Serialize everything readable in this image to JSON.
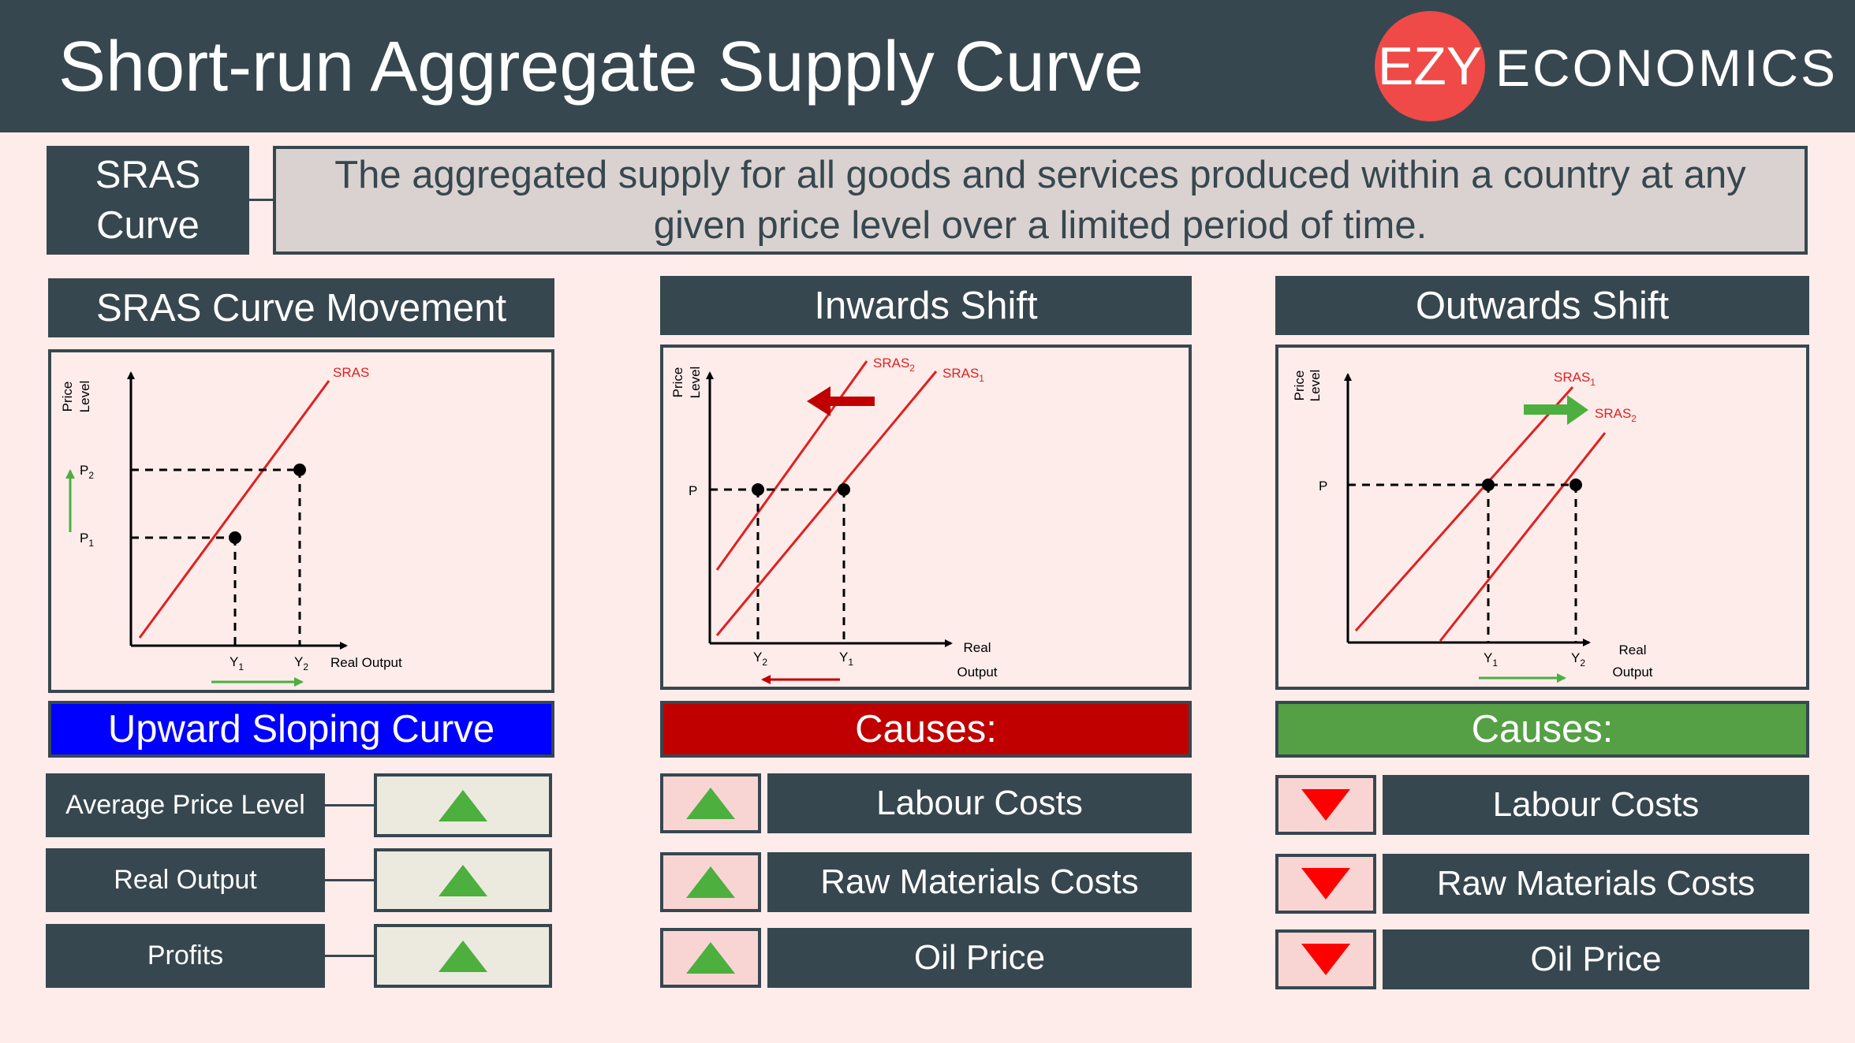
{
  "header": {
    "title": "Short-run Aggregate Supply Curve"
  },
  "logo": {
    "ezy": "EZY",
    "economics": "ECONOMICS"
  },
  "definition": {
    "term_line1": "SRAS",
    "term_line2": "Curve",
    "text": "The aggregated supply for all goods and services produced within a country at any given price level over a limited period of time."
  },
  "colors": {
    "header_bg": "#37474f",
    "background": "#fdecea",
    "curve_red": "#e02020",
    "up_green": "#4caf3e",
    "down_red": "#ff0000",
    "banner_blue": "#0000ff",
    "banner_red": "#c00000",
    "banner_green": "#55a045"
  },
  "movement": {
    "title": "SRAS Curve Movement",
    "chart": {
      "y_label_1": "Price",
      "y_label_2": "Level",
      "x_label": "Real Output",
      "curve_label": "SRAS",
      "p1": "P",
      "p1_sub": "1",
      "p2": "P",
      "p2_sub": "2",
      "y1": "Y",
      "y1_sub": "1",
      "y2": "Y",
      "y2_sub": "2"
    },
    "banner": "Upward Sloping Curve",
    "rows": [
      {
        "label": "Average Price Level",
        "direction": "up"
      },
      {
        "label": "Real Output",
        "direction": "up"
      },
      {
        "label": "Profits",
        "direction": "up"
      }
    ]
  },
  "inwards": {
    "title": "Inwards Shift",
    "chart": {
      "y_label_1": "Price",
      "y_label_2": "Level",
      "x_label_1": "Real",
      "x_label_2": "Output",
      "p": "P",
      "sras1": "SRAS",
      "sras1_sub": "1",
      "sras2": "SRAS",
      "sras2_sub": "2",
      "y1": "Y",
      "y1_sub": "1",
      "y2": "Y",
      "y2_sub": "2"
    },
    "banner": "Causes:",
    "causes": [
      {
        "label": "Labour Costs",
        "direction": "up"
      },
      {
        "label": "Raw Materials Costs",
        "direction": "up"
      },
      {
        "label": "Oil Price",
        "direction": "up"
      }
    ]
  },
  "outwards": {
    "title": "Outwards Shift",
    "chart": {
      "y_label_1": "Price",
      "y_label_2": "Level",
      "x_label_1": "Real",
      "x_label_2": "Output",
      "p": "P",
      "sras1": "SRAS",
      "sras1_sub": "1",
      "sras2": "SRAS",
      "sras2_sub": "2",
      "y1": "Y",
      "y1_sub": "1",
      "y2": "Y",
      "y2_sub": "2"
    },
    "banner": "Causes:",
    "causes": [
      {
        "label": "Labour Costs",
        "direction": "down"
      },
      {
        "label": "Raw Materials Costs",
        "direction": "down"
      },
      {
        "label": "Oil Price",
        "direction": "down"
      }
    ]
  }
}
